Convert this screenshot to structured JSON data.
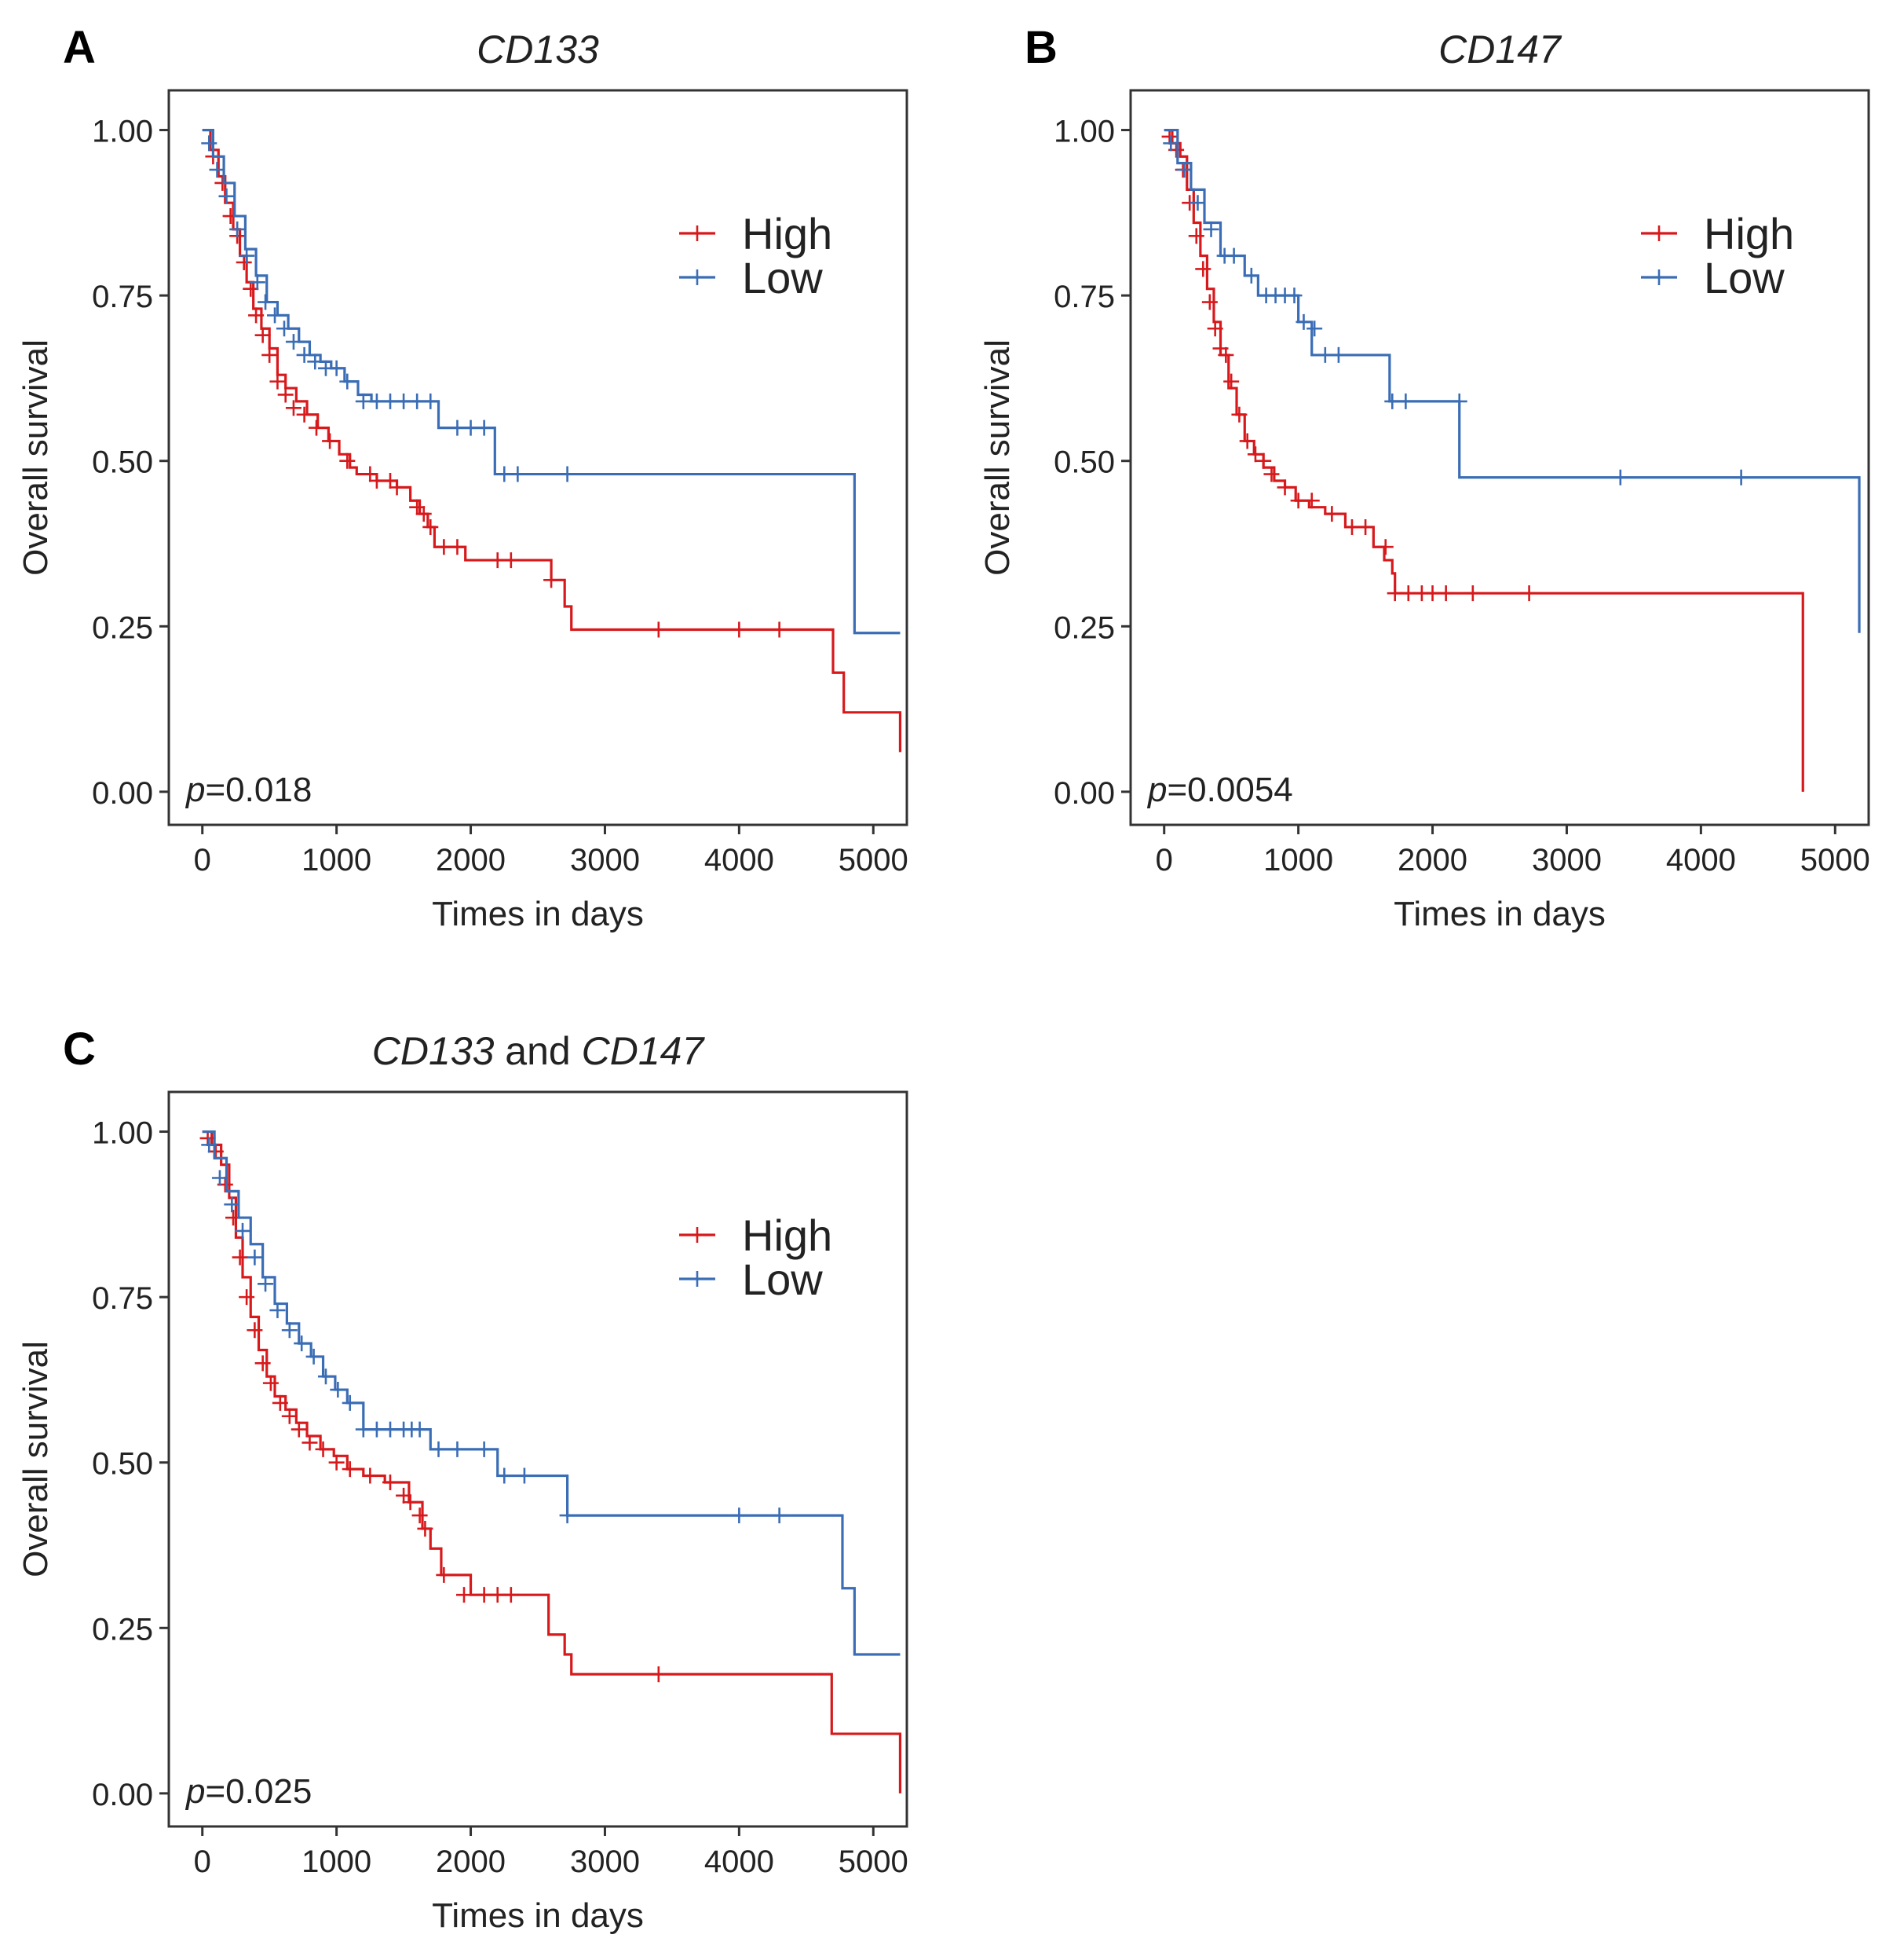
{
  "colors": {
    "high": "#d7191c",
    "low": "#3a6db5",
    "axis": "#333333",
    "text": "#222222"
  },
  "chart_data": [
    {
      "panel_label": "A",
      "title": {
        "italic": "CD133",
        "suffix": "",
        "italic2": ""
      },
      "type": "line",
      "xlabel": "Times in days",
      "ylabel": "Overall  survival",
      "xlim": [
        -250,
        5250
      ],
      "ylim": [
        -0.05,
        1.06
      ],
      "xticks": [
        0,
        1000,
        2000,
        3000,
        4000,
        5000
      ],
      "yticks": [
        0.0,
        0.25,
        0.5,
        0.75,
        1.0
      ],
      "ytick_labels": [
        "0.00",
        "0.25",
        "0.50",
        "0.75",
        "1.00"
      ],
      "legend": {
        "entries": [
          "High",
          "Low"
        ],
        "position": "top-right"
      },
      "pvalue": {
        "p": "p",
        "rest": "=0.018"
      },
      "series": [
        {
          "name": "High",
          "color_key": "high",
          "x": [
            0,
            60,
            120,
            170,
            230,
            280,
            330,
            380,
            440,
            500,
            560,
            620,
            700,
            780,
            860,
            940,
            1020,
            1100,
            1150,
            1230,
            1300,
            1450,
            1550,
            1620,
            1680,
            1730,
            1800,
            1960,
            2100,
            2600,
            2700,
            2750,
            4700,
            4780,
            5000,
            5200
          ],
          "y": [
            1.0,
            0.97,
            0.93,
            0.89,
            0.85,
            0.81,
            0.77,
            0.73,
            0.7,
            0.67,
            0.63,
            0.61,
            0.59,
            0.57,
            0.55,
            0.53,
            0.51,
            0.49,
            0.48,
            0.48,
            0.47,
            0.46,
            0.44,
            0.42,
            0.4,
            0.37,
            0.37,
            0.35,
            0.35,
            0.32,
            0.28,
            0.245,
            0.18,
            0.12,
            0.12,
            0.06
          ],
          "censor_x": [
            80,
            150,
            210,
            260,
            310,
            360,
            400,
            450,
            500,
            560,
            620,
            680,
            760,
            850,
            950,
            1080,
            1250,
            1300,
            1400,
            1450,
            1600,
            1650,
            1700,
            1800,
            1900,
            2200,
            2300,
            2600,
            3400,
            4000,
            4300
          ],
          "censor_y": [
            0.96,
            0.92,
            0.87,
            0.84,
            0.8,
            0.76,
            0.72,
            0.69,
            0.66,
            0.62,
            0.6,
            0.58,
            0.57,
            0.55,
            0.53,
            0.5,
            0.48,
            0.47,
            0.47,
            0.46,
            0.43,
            0.42,
            0.4,
            0.37,
            0.37,
            0.35,
            0.35,
            0.32,
            0.245,
            0.245,
            0.245
          ]
        },
        {
          "name": "Low",
          "color_key": "low",
          "x": [
            0,
            80,
            160,
            240,
            320,
            400,
            480,
            560,
            640,
            720,
            800,
            880,
            960,
            1060,
            1160,
            1260,
            1760,
            2160,
            2180,
            4840,
            4860,
            5200
          ],
          "y": [
            1.0,
            0.96,
            0.92,
            0.87,
            0.82,
            0.78,
            0.74,
            0.72,
            0.7,
            0.68,
            0.66,
            0.65,
            0.64,
            0.62,
            0.6,
            0.59,
            0.55,
            0.55,
            0.48,
            0.48,
            0.24,
            0.24
          ],
          "censor_x": [
            50,
            110,
            180,
            260,
            330,
            410,
            470,
            540,
            610,
            680,
            760,
            840,
            920,
            1000,
            1080,
            1200,
            1300,
            1400,
            1500,
            1600,
            1700,
            1900,
            2000,
            2100,
            2250,
            2350,
            2720
          ],
          "censor_y": [
            0.98,
            0.94,
            0.9,
            0.85,
            0.81,
            0.77,
            0.74,
            0.72,
            0.7,
            0.68,
            0.66,
            0.65,
            0.64,
            0.64,
            0.62,
            0.59,
            0.59,
            0.59,
            0.59,
            0.59,
            0.59,
            0.55,
            0.55,
            0.55,
            0.48,
            0.48,
            0.48
          ]
        }
      ]
    },
    {
      "panel_label": "B",
      "title": {
        "italic": "CD147",
        "suffix": "",
        "italic2": ""
      },
      "type": "line",
      "xlabel": "Times in days",
      "ylabel": "Overall  survival",
      "xlim": [
        -250,
        5250
      ],
      "ylim": [
        -0.05,
        1.06
      ],
      "xticks": [
        0,
        1000,
        2000,
        3000,
        4000,
        5000
      ],
      "yticks": [
        0.0,
        0.25,
        0.5,
        0.75,
        1.0
      ],
      "ytick_labels": [
        "0.00",
        "0.25",
        "0.50",
        "0.75",
        "1.00"
      ],
      "legend": {
        "entries": [
          "High",
          "Low"
        ],
        "position": "top-right"
      },
      "pvalue": {
        "p": "p",
        "rest": "=0.0054"
      },
      "series": [
        {
          "name": "High",
          "color_key": "high",
          "x": [
            0,
            60,
            120,
            170,
            220,
            270,
            320,
            370,
            420,
            480,
            540,
            600,
            670,
            740,
            820,
            900,
            980,
            1080,
            1200,
            1350,
            1560,
            1640,
            1700,
            1720,
            4760,
            4760
          ],
          "y": [
            1.0,
            0.98,
            0.96,
            0.91,
            0.86,
            0.81,
            0.76,
            0.71,
            0.66,
            0.61,
            0.57,
            0.53,
            0.51,
            0.49,
            0.47,
            0.46,
            0.44,
            0.43,
            0.42,
            0.4,
            0.37,
            0.35,
            0.33,
            0.3,
            0.3,
            0.0
          ],
          "censor_x": [
            40,
            90,
            140,
            190,
            240,
            290,
            340,
            380,
            420,
            460,
            500,
            560,
            620,
            680,
            740,
            800,
            900,
            1000,
            1100,
            1250,
            1400,
            1500,
            1650,
            1720,
            1820,
            1920,
            2000,
            2100,
            2300,
            2720
          ],
          "censor_y": [
            0.99,
            0.97,
            0.94,
            0.89,
            0.84,
            0.79,
            0.74,
            0.7,
            0.67,
            0.66,
            0.62,
            0.57,
            0.53,
            0.51,
            0.5,
            0.48,
            0.46,
            0.44,
            0.44,
            0.42,
            0.4,
            0.4,
            0.37,
            0.3,
            0.3,
            0.3,
            0.3,
            0.3,
            0.3,
            0.3
          ]
        },
        {
          "name": "Low",
          "color_key": "low",
          "x": [
            0,
            100,
            200,
            300,
            420,
            600,
            700,
            1000,
            1100,
            1660,
            1680,
            2180,
            2200,
            5160,
            5180
          ],
          "y": [
            1.0,
            0.95,
            0.91,
            0.86,
            0.81,
            0.78,
            0.75,
            0.71,
            0.66,
            0.66,
            0.59,
            0.59,
            0.475,
            0.475,
            0.24
          ],
          "censor_x": [
            50,
            150,
            250,
            350,
            450,
            520,
            650,
            760,
            830,
            900,
            970,
            1040,
            1120,
            1200,
            1300,
            1700,
            1800,
            2200,
            3400,
            4300
          ],
          "censor_y": [
            0.98,
            0.94,
            0.89,
            0.85,
            0.81,
            0.81,
            0.78,
            0.75,
            0.75,
            0.75,
            0.75,
            0.71,
            0.7,
            0.66,
            0.66,
            0.59,
            0.59,
            0.59,
            0.475,
            0.475
          ]
        }
      ]
    },
    {
      "panel_label": "C",
      "title": {
        "italic": "CD133",
        "suffix": " and ",
        "italic2": "CD147"
      },
      "type": "line",
      "xlabel": "Times in days",
      "ylabel": "Overall  survival",
      "xlim": [
        -250,
        5250
      ],
      "ylim": [
        -0.05,
        1.06
      ],
      "xticks": [
        0,
        1000,
        2000,
        3000,
        4000,
        5000
      ],
      "yticks": [
        0.0,
        0.25,
        0.5,
        0.75,
        1.0
      ],
      "ytick_labels": [
        "0.00",
        "0.25",
        "0.50",
        "0.75",
        "1.00"
      ],
      "legend": {
        "entries": [
          "High",
          "Low"
        ],
        "position": "top-right"
      },
      "pvalue": {
        "p": "p",
        "rest": "=0.025"
      },
      "series": [
        {
          "name": "High",
          "color_key": "high",
          "x": [
            0,
            70,
            140,
            200,
            250,
            300,
            360,
            420,
            480,
            540,
            620,
            700,
            780,
            880,
            980,
            1080,
            1200,
            1360,
            1540,
            1640,
            1700,
            1780,
            2000,
            2580,
            2700,
            2750,
            4680,
            4690,
            5200,
            5200
          ],
          "y": [
            1.0,
            0.98,
            0.95,
            0.9,
            0.84,
            0.78,
            0.72,
            0.67,
            0.63,
            0.6,
            0.58,
            0.56,
            0.54,
            0.52,
            0.51,
            0.49,
            0.48,
            0.47,
            0.44,
            0.4,
            0.37,
            0.33,
            0.3,
            0.24,
            0.21,
            0.18,
            0.18,
            0.09,
            0.09,
            0.0
          ],
          "censor_x": [
            40,
            100,
            170,
            230,
            280,
            330,
            390,
            450,
            510,
            580,
            650,
            720,
            800,
            900,
            1000,
            1100,
            1250,
            1400,
            1500,
            1550,
            1620,
            1660,
            1800,
            1950,
            2100,
            2200,
            2300,
            3400
          ],
          "censor_y": [
            0.99,
            0.97,
            0.92,
            0.87,
            0.81,
            0.75,
            0.7,
            0.65,
            0.62,
            0.59,
            0.57,
            0.55,
            0.53,
            0.52,
            0.5,
            0.49,
            0.48,
            0.47,
            0.45,
            0.44,
            0.42,
            0.4,
            0.33,
            0.3,
            0.3,
            0.3,
            0.3,
            0.18
          ]
        },
        {
          "name": "Low",
          "color_key": "low",
          "x": [
            0,
            90,
            180,
            270,
            360,
            450,
            540,
            630,
            720,
            810,
            900,
            990,
            1080,
            1200,
            1700,
            2150,
            2200,
            2700,
            2720,
            4750,
            4770,
            4840,
            4860,
            5200
          ],
          "y": [
            1.0,
            0.96,
            0.91,
            0.87,
            0.83,
            0.78,
            0.74,
            0.71,
            0.68,
            0.66,
            0.63,
            0.61,
            0.59,
            0.55,
            0.52,
            0.52,
            0.48,
            0.48,
            0.42,
            0.42,
            0.31,
            0.31,
            0.21,
            0.21
          ],
          "censor_x": [
            50,
            130,
            220,
            300,
            390,
            470,
            560,
            650,
            740,
            830,
            920,
            1010,
            1100,
            1200,
            1300,
            1400,
            1500,
            1560,
            1620,
            1760,
            1900,
            2100,
            2250,
            2400,
            2720,
            4000,
            4300
          ],
          "censor_y": [
            0.98,
            0.93,
            0.89,
            0.85,
            0.81,
            0.77,
            0.73,
            0.7,
            0.68,
            0.66,
            0.63,
            0.61,
            0.59,
            0.55,
            0.55,
            0.55,
            0.55,
            0.55,
            0.55,
            0.52,
            0.52,
            0.52,
            0.48,
            0.48,
            0.42,
            0.42,
            0.42
          ]
        }
      ]
    }
  ]
}
